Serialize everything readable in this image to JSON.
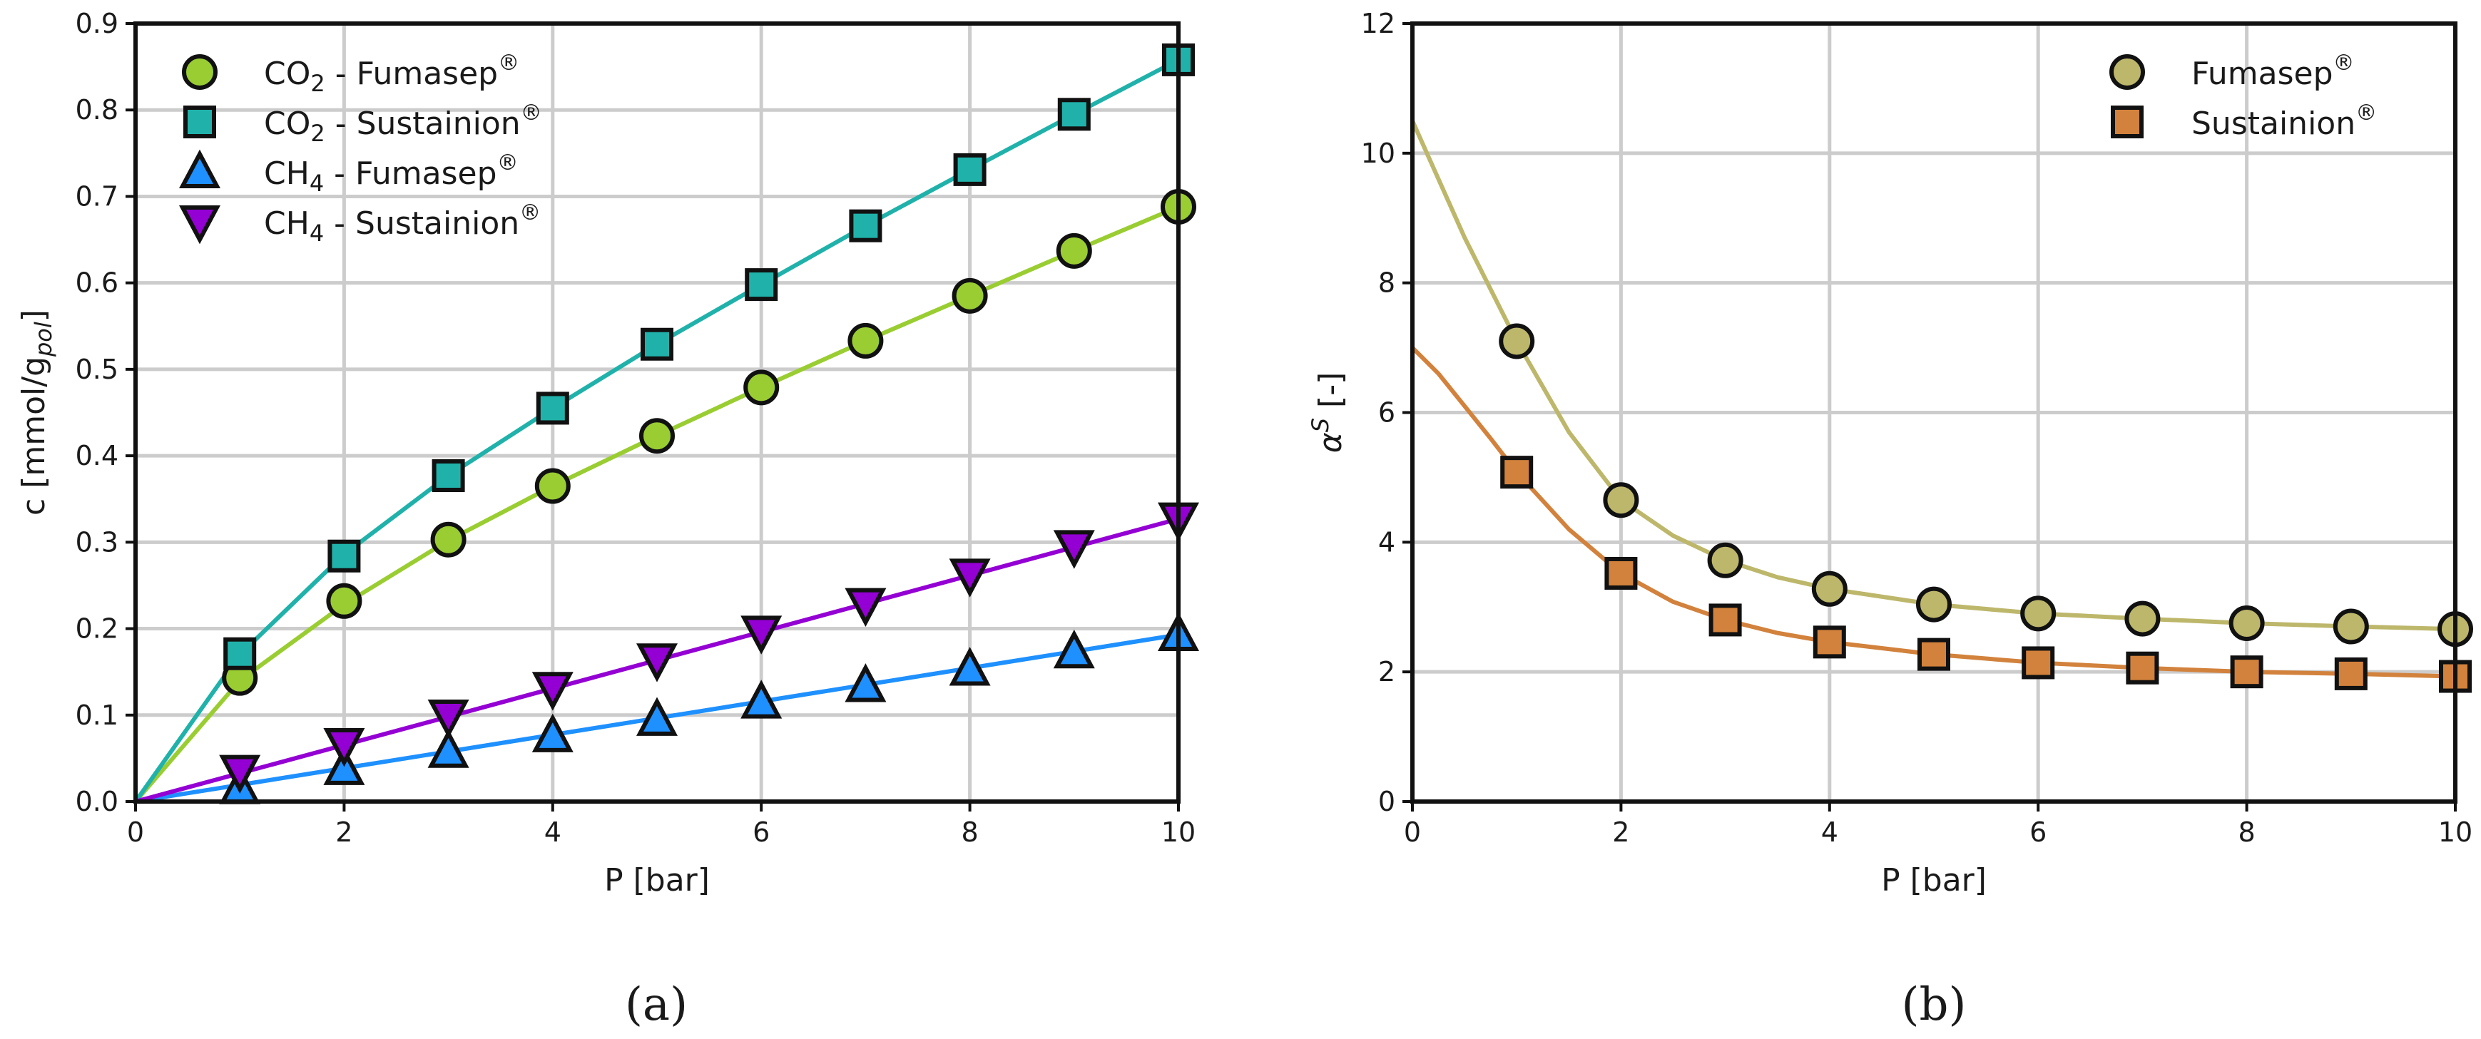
{
  "chart_data": [
    {
      "id": "a",
      "type": "line",
      "panel_label": "(a)",
      "xlabel": "P [bar]",
      "ylabel": {
        "main": "c [mmol/g",
        "sub": "pol",
        "close": "]"
      },
      "xlim": [
        0,
        10
      ],
      "ylim": [
        0,
        0.9
      ],
      "xticks": [
        0,
        2,
        4,
        6,
        8,
        10
      ],
      "yticks": [
        0,
        0.1,
        0.2,
        0.3,
        0.4,
        0.5,
        0.6,
        0.7,
        0.8,
        0.9
      ],
      "ytick_labels": [
        "0.0",
        "0.1",
        "0.2",
        "0.3",
        "0.4",
        "0.5",
        "0.6",
        "0.7",
        "0.8",
        "0.9"
      ],
      "grid": true,
      "legend_position": "top-left",
      "series": [
        {
          "name": {
            "pre": "CO",
            "sub": "2",
            "post": " - Fumasep",
            "sup": "®"
          },
          "marker": "circle",
          "color": "#9acd32",
          "x": [
            1,
            2,
            3,
            4,
            5,
            6,
            7,
            8,
            9,
            10
          ],
          "y": [
            0.143,
            0.232,
            0.303,
            0.365,
            0.423,
            0.479,
            0.533,
            0.585,
            0.637,
            0.688
          ],
          "curve": [
            [
              0,
              0
            ],
            [
              1,
              0.14
            ],
            [
              2,
              0.228
            ],
            [
              3,
              0.302
            ],
            [
              4,
              0.365
            ],
            [
              5,
              0.423
            ],
            [
              6,
              0.479
            ],
            [
              7,
              0.533
            ],
            [
              8,
              0.585
            ],
            [
              9,
              0.637
            ],
            [
              10,
              0.688
            ]
          ]
        },
        {
          "name": {
            "pre": "CO",
            "sub": "2",
            "post": " - Sustainion",
            "sup": "®"
          },
          "marker": "square",
          "color": "#20b2aa",
          "x": [
            1,
            2,
            3,
            4,
            5,
            6,
            7,
            8,
            9,
            10
          ],
          "y": [
            0.171,
            0.284,
            0.377,
            0.455,
            0.529,
            0.598,
            0.666,
            0.731,
            0.795,
            0.858
          ],
          "curve": [
            [
              0,
              0
            ],
            [
              1,
              0.17
            ],
            [
              2,
              0.286
            ],
            [
              3,
              0.377
            ],
            [
              4,
              0.455
            ],
            [
              5,
              0.529
            ],
            [
              6,
              0.598
            ],
            [
              7,
              0.666
            ],
            [
              8,
              0.731
            ],
            [
              9,
              0.795
            ],
            [
              10,
              0.858
            ]
          ]
        },
        {
          "name": {
            "pre": "CH",
            "sub": "4",
            "post": " - Fumasep",
            "sup": "®"
          },
          "marker": "triangle-up",
          "color": "#1e90ff",
          "x": [
            1,
            2,
            3,
            4,
            5,
            6,
            7,
            8,
            9,
            10
          ],
          "y": [
            0.016,
            0.038,
            0.058,
            0.076,
            0.095,
            0.115,
            0.134,
            0.153,
            0.173,
            0.193
          ],
          "curve": [
            [
              0,
              0
            ],
            [
              10,
              0.193
            ]
          ]
        },
        {
          "name": {
            "pre": "CH",
            "sub": "4",
            "post": " - Sustainion",
            "sup": "®"
          },
          "marker": "triangle-down",
          "color": "#9400d3",
          "x": [
            1,
            2,
            3,
            4,
            5,
            6,
            7,
            8,
            9,
            10
          ],
          "y": [
            0.035,
            0.066,
            0.099,
            0.131,
            0.164,
            0.196,
            0.228,
            0.262,
            0.295,
            0.327
          ],
          "curve": [
            [
              0,
              0
            ],
            [
              10,
              0.327
            ]
          ]
        }
      ]
    },
    {
      "id": "b",
      "type": "line",
      "panel_label": "(b)",
      "xlabel": "P [bar]",
      "ylabel": {
        "main": "α",
        "sup": "S",
        "close": " [-]"
      },
      "xlim": [
        0,
        10
      ],
      "ylim": [
        0,
        12
      ],
      "xticks": [
        0,
        2,
        4,
        6,
        8,
        10
      ],
      "yticks": [
        0,
        2,
        4,
        6,
        8,
        10,
        12
      ],
      "ytick_labels": [
        "0",
        "2",
        "4",
        "6",
        "8",
        "10",
        "12"
      ],
      "grid": true,
      "legend_position": "top-right",
      "series": [
        {
          "name": {
            "pre": "Fumasep",
            "sub": "",
            "post": "",
            "sup": "®"
          },
          "marker": "circle",
          "color": "#bdb76b",
          "x": [
            1,
            2,
            3,
            4,
            5,
            6,
            7,
            8,
            9,
            10
          ],
          "y": [
            7.1,
            4.65,
            3.72,
            3.28,
            3.04,
            2.9,
            2.82,
            2.75,
            2.7,
            2.66
          ],
          "curve": [
            [
              0,
              10.5
            ],
            [
              0.25,
              9.6
            ],
            [
              0.5,
              8.7
            ],
            [
              0.75,
              7.9
            ],
            [
              1,
              7.1
            ],
            [
              1.5,
              5.7
            ],
            [
              2,
              4.65
            ],
            [
              2.5,
              4.1
            ],
            [
              3,
              3.72
            ],
            [
              3.5,
              3.46
            ],
            [
              4,
              3.28
            ],
            [
              5,
              3.04
            ],
            [
              6,
              2.9
            ],
            [
              7,
              2.82
            ],
            [
              8,
              2.75
            ],
            [
              9,
              2.7
            ],
            [
              10,
              2.66
            ]
          ]
        },
        {
          "name": {
            "pre": "Sustainion",
            "sub": "",
            "post": "",
            "sup": "®"
          },
          "marker": "square",
          "color": "#d2823c",
          "x": [
            1,
            2,
            3,
            4,
            5,
            6,
            7,
            8,
            9,
            10
          ],
          "y": [
            5.08,
            3.52,
            2.8,
            2.46,
            2.27,
            2.14,
            2.06,
            2.0,
            1.97,
            1.93
          ],
          "curve": [
            [
              0,
              7.0
            ],
            [
              0.25,
              6.6
            ],
            [
              0.5,
              6.1
            ],
            [
              0.75,
              5.6
            ],
            [
              1,
              5.08
            ],
            [
              1.5,
              4.2
            ],
            [
              2,
              3.52
            ],
            [
              2.5,
              3.08
            ],
            [
              3,
              2.8
            ],
            [
              3.5,
              2.6
            ],
            [
              4,
              2.46
            ],
            [
              5,
              2.27
            ],
            [
              6,
              2.14
            ],
            [
              7,
              2.06
            ],
            [
              8,
              2.0
            ],
            [
              9,
              1.97
            ],
            [
              10,
              1.93
            ]
          ]
        }
      ]
    }
  ]
}
